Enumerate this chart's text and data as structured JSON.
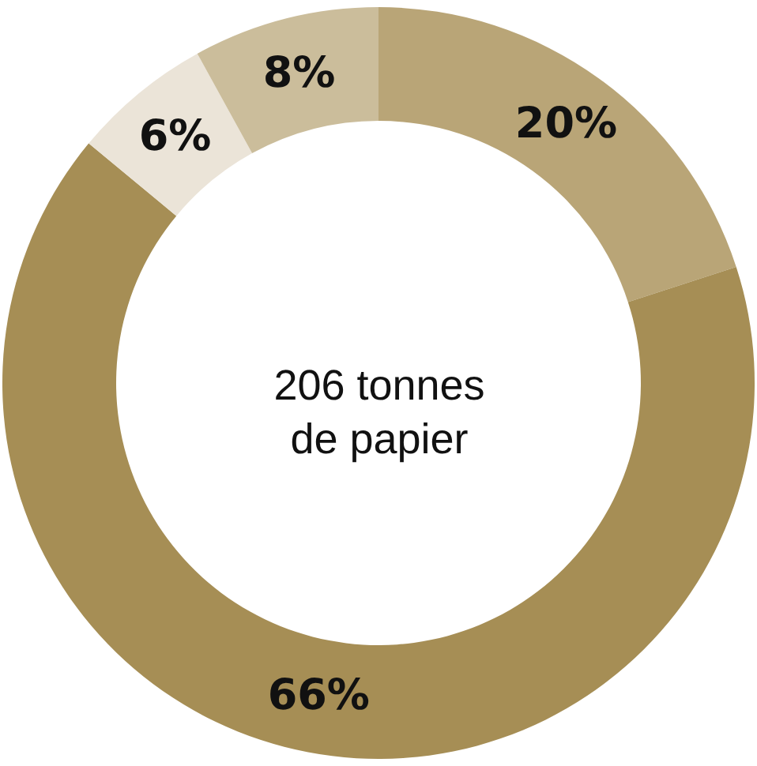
{
  "chart_data": {
    "type": "donut",
    "categories": [
      null,
      null,
      null,
      null
    ],
    "values": [
      20,
      66,
      6,
      8
    ],
    "colors": [
      "#b9a577",
      "#a68e55",
      "#ebe4d8",
      "#cbbd9b"
    ],
    "value_labels": [
      "20%",
      "66%",
      "6%",
      "8%"
    ],
    "annotations": [
      "206 tonnes\nde papier"
    ]
  }
}
